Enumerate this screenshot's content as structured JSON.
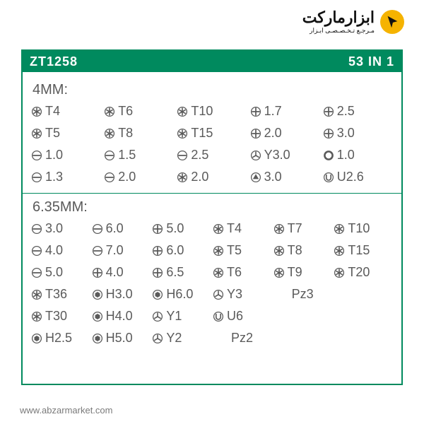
{
  "logo": {
    "main": "ابزارماركت",
    "sub": "مـرجـع تـخـصـصـی ابـزار"
  },
  "header": {
    "model": "ZT1258",
    "badge": "53 IN 1"
  },
  "colors": {
    "brand_green": "#008a5e",
    "brand_yellow": "#f5b300",
    "text_gray": "#5a5a5a",
    "bg": "#ffffff",
    "footer_gray": "#7a7a7a",
    "logo_black": "#111111"
  },
  "typography": {
    "item_fontsize": 18,
    "title_fontsize": 20,
    "header_fontsize": 18
  },
  "sections": [
    {
      "title": "4MM:",
      "cols": 5,
      "items": [
        {
          "icon": "torx",
          "label": "T4"
        },
        {
          "icon": "torx",
          "label": "T6"
        },
        {
          "icon": "torx",
          "label": "T10"
        },
        {
          "icon": "phillips",
          "label": "1.7"
        },
        {
          "icon": "phillips",
          "label": "2.5"
        },
        {
          "icon": "torx",
          "label": "T5"
        },
        {
          "icon": "torx",
          "label": "T8"
        },
        {
          "icon": "torx",
          "label": "T15"
        },
        {
          "icon": "phillips",
          "label": "2.0"
        },
        {
          "icon": "phillips",
          "label": "3.0"
        },
        {
          "icon": "slot",
          "label": "1.0"
        },
        {
          "icon": "slot",
          "label": "1.5"
        },
        {
          "icon": "slot",
          "label": "2.5"
        },
        {
          "icon": "tri",
          "label": "Y3.0"
        },
        {
          "icon": "ring",
          "label": "1.0"
        },
        {
          "icon": "slot",
          "label": "1.3"
        },
        {
          "icon": "slot",
          "label": "2.0"
        },
        {
          "icon": "torx",
          "label": "2.0"
        },
        {
          "icon": "triangle",
          "label": "3.0"
        },
        {
          "icon": "u",
          "label": "U2.6"
        }
      ]
    },
    {
      "title": "6.35MM:",
      "cols": 6,
      "items": [
        {
          "icon": "slot",
          "label": "3.0"
        },
        {
          "icon": "slot",
          "label": "6.0"
        },
        {
          "icon": "phillips",
          "label": "5.0"
        },
        {
          "icon": "torx",
          "label": "T4"
        },
        {
          "icon": "torx",
          "label": "T7"
        },
        {
          "icon": "torx",
          "label": "T10"
        },
        {
          "icon": "slot",
          "label": "4.0"
        },
        {
          "icon": "slot",
          "label": "7.0"
        },
        {
          "icon": "phillips",
          "label": "6.0"
        },
        {
          "icon": "torx",
          "label": "T5"
        },
        {
          "icon": "torx",
          "label": "T8"
        },
        {
          "icon": "torx",
          "label": "T15"
        },
        {
          "icon": "slot",
          "label": "5.0"
        },
        {
          "icon": "phillips",
          "label": "4.0"
        },
        {
          "icon": "phillips",
          "label": "6.5"
        },
        {
          "icon": "torx",
          "label": "T6"
        },
        {
          "icon": "torx",
          "label": "T9"
        },
        {
          "icon": "torx",
          "label": "T20"
        },
        {
          "icon": "torx",
          "label": "T36"
        },
        {
          "icon": "hex",
          "label": "H3.0"
        },
        {
          "icon": "hex",
          "label": "H6.0"
        },
        {
          "icon": "tri",
          "label": "Y3"
        },
        {
          "icon": "none",
          "label": "Pz3"
        },
        {
          "icon": "none",
          "label": ""
        },
        {
          "icon": "torx",
          "label": "T30"
        },
        {
          "icon": "hex",
          "label": "H4.0"
        },
        {
          "icon": "tri",
          "label": "Y1"
        },
        {
          "icon": "u",
          "label": "U6"
        },
        {
          "icon": "none",
          "label": ""
        },
        {
          "icon": "none",
          "label": ""
        },
        {
          "icon": "hex",
          "label": "H2.5"
        },
        {
          "icon": "hex",
          "label": "H5.0"
        },
        {
          "icon": "tri",
          "label": "Y2"
        },
        {
          "icon": "none",
          "label": "Pz2"
        },
        {
          "icon": "none",
          "label": ""
        },
        {
          "icon": "none",
          "label": ""
        }
      ]
    }
  ],
  "footer": "www.abzarmarket.com",
  "icon_defs": {
    "slot": "circle + horizontal bar",
    "phillips": "circle + cross",
    "torx": "circle + 6-point star",
    "hex": "circle + filled hexagon",
    "tri": "circle + 3-arm Y",
    "triangle": "circle + filled triangle",
    "ring": "thick ring",
    "u": "circle + U shape",
    "none": "no icon"
  }
}
